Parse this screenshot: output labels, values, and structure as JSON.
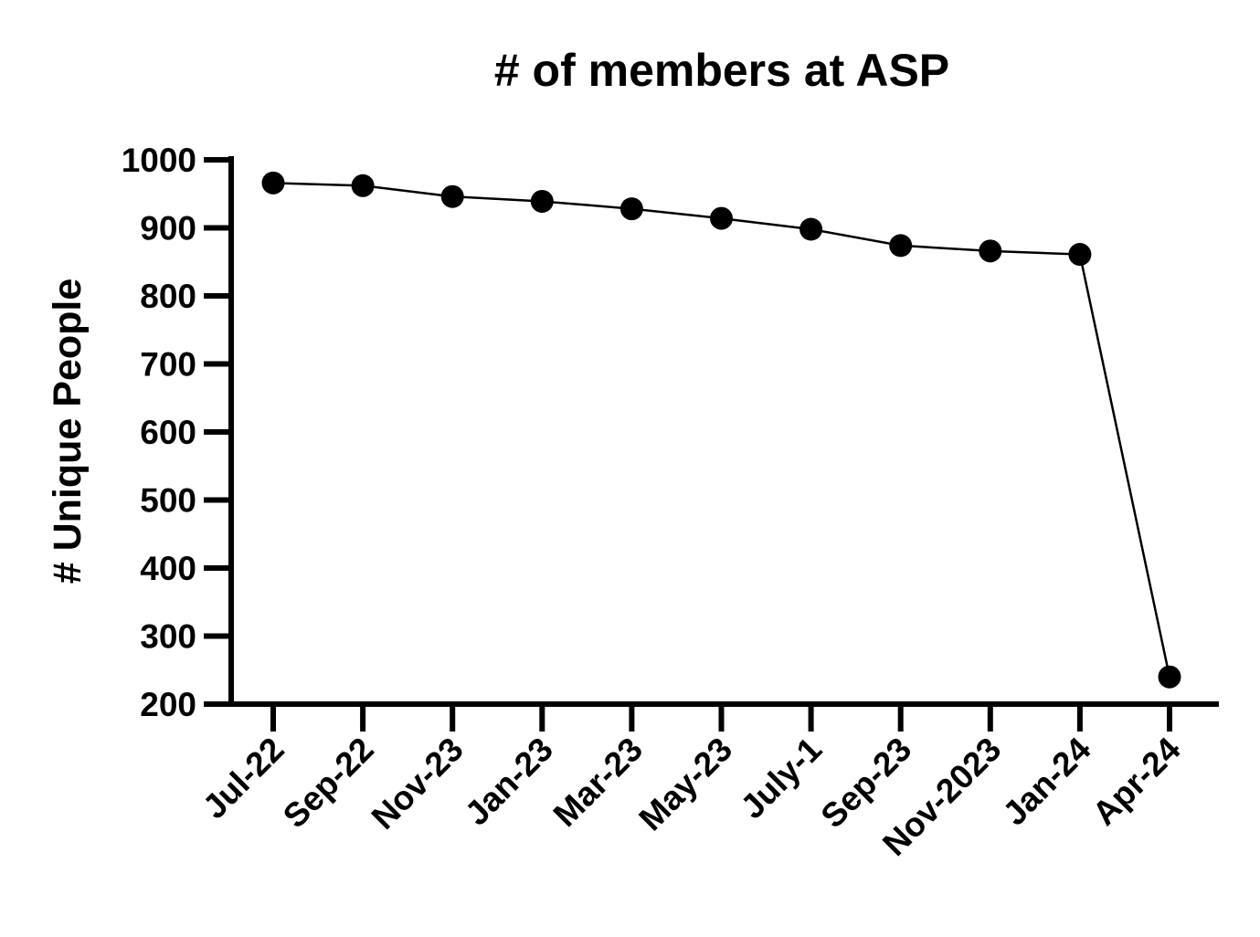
{
  "chart_data": {
    "type": "line",
    "title": "# of members at ASP",
    "xlabel": "",
    "ylabel": "# Unique People",
    "categories": [
      "Jul-22",
      "Sep-22",
      "Nov-23",
      "Jan-23",
      "Mar-23",
      "May-23",
      "July-1",
      "Sep-23",
      "Nov-2023",
      "Jan-24",
      "Apr-24"
    ],
    "series": [
      {
        "values": [
          966,
          962,
          946,
          939,
          928,
          914,
          898,
          874,
          866,
          861,
          240
        ]
      }
    ],
    "ylim": [
      200,
      1000
    ],
    "yticks": [
      "200",
      "300",
      "400",
      "500",
      "600",
      "700",
      "800",
      "900",
      "1000"
    ],
    "grid": false,
    "legend": "none",
    "colors": {
      "line": "#000000",
      "marker": "#000000",
      "axis": "#000000"
    }
  }
}
